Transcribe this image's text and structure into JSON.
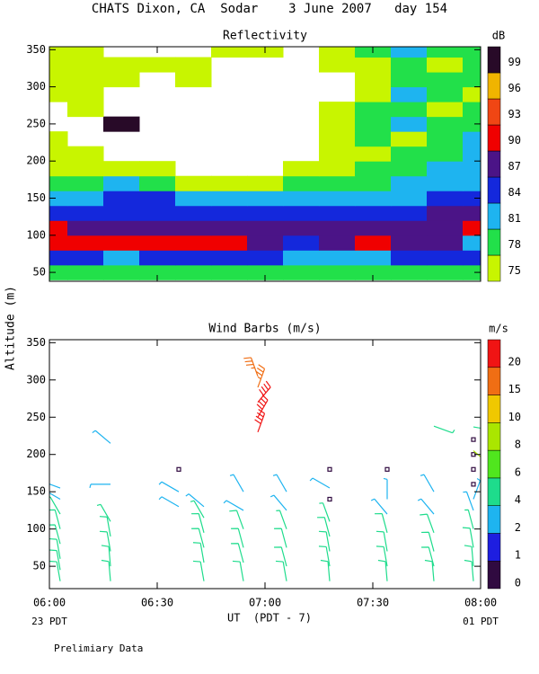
{
  "title": "CHATS Dixon, CA  Sodar    3 June 2007   day 154",
  "y_label": "Altitude (m)",
  "x_label": "UT  (PDT - 7)",
  "x_start_label": "23 PDT",
  "x_end_label": "01 PDT",
  "footnote": "Prelimiary Data",
  "chart_data": [
    {
      "type": "heatmap",
      "title": "Reflectivity",
      "x": [
        360,
        370,
        380,
        390,
        400,
        410,
        420,
        430,
        440,
        450,
        460,
        470,
        480
      ],
      "y": [
        50,
        70,
        90,
        110,
        130,
        150,
        170,
        190,
        210,
        230,
        250,
        270,
        290,
        310,
        330,
        350
      ],
      "z": [
        [
          79,
          79,
          79,
          79,
          79,
          79,
          79,
          79,
          79,
          79,
          79,
          79,
          79
        ],
        [
          85,
          85,
          82,
          85,
          85,
          85,
          85,
          82,
          82,
          82,
          85,
          85,
          85
        ],
        [
          91,
          91,
          91,
          91,
          91,
          91,
          88,
          85,
          88,
          91,
          88,
          88,
          82
        ],
        [
          91,
          88,
          88,
          88,
          88,
          88,
          88,
          88,
          88,
          88,
          88,
          88,
          91
        ],
        [
          86,
          86,
          86,
          86,
          86,
          86,
          86,
          85,
          85,
          85,
          85,
          88,
          88
        ],
        [
          82,
          82,
          86,
          85,
          82,
          82,
          82,
          82,
          82,
          82,
          82,
          85,
          85
        ],
        [
          79,
          79,
          82,
          79,
          76,
          76,
          76,
          79,
          79,
          79,
          82,
          82,
          82
        ],
        [
          76,
          76,
          76,
          76,
          null,
          null,
          null,
          76,
          76,
          79,
          79,
          82,
          82
        ],
        [
          76,
          76,
          null,
          null,
          null,
          null,
          null,
          null,
          76,
          76,
          79,
          79,
          82
        ],
        [
          76,
          null,
          null,
          null,
          null,
          null,
          null,
          null,
          76,
          79,
          76,
          79,
          82
        ],
        [
          null,
          null,
          99,
          null,
          null,
          null,
          null,
          null,
          76,
          79,
          82,
          79,
          79
        ],
        [
          null,
          76,
          null,
          null,
          null,
          null,
          null,
          null,
          76,
          79,
          79,
          76,
          79
        ],
        [
          76,
          76,
          null,
          null,
          null,
          null,
          null,
          null,
          null,
          76,
          82,
          79,
          76
        ],
        [
          76,
          76,
          76,
          null,
          76,
          null,
          null,
          null,
          null,
          76,
          79,
          79,
          79
        ],
        [
          76,
          76,
          76,
          76,
          76,
          null,
          null,
          null,
          76,
          76,
          79,
          76,
          79
        ],
        [
          76,
          76,
          null,
          null,
          null,
          76,
          76,
          null,
          76,
          79,
          82,
          79,
          79
        ]
      ],
      "xlim": [
        360,
        480
      ],
      "ylim": [
        38,
        354
      ],
      "xticks": [
        {
          "value": 360,
          "label": "06:00"
        },
        {
          "value": 390,
          "label": "06:30"
        },
        {
          "value": 420,
          "label": "07:00"
        },
        {
          "value": 450,
          "label": "07:30"
        },
        {
          "value": 480,
          "label": "08:00"
        }
      ],
      "yticks": [
        50,
        100,
        150,
        200,
        250,
        300,
        350
      ],
      "colorbar": {
        "label": "dB",
        "ticks": [
          75,
          78,
          81,
          84,
          87,
          90,
          93,
          96,
          99
        ],
        "colors": [
          "#c8f500",
          "#22e04a",
          "#1eb4f0",
          "#1428dc",
          "#4b1487",
          "#f00000",
          "#f04614",
          "#f0b400",
          "#280a28"
        ]
      }
    },
    {
      "type": "barbs",
      "title": "Wind Barbs (m/s)",
      "barbs": [
        {
          "time": 363,
          "altitude": 30,
          "speed": 5,
          "direction": 350
        },
        {
          "time": 363,
          "altitude": 45,
          "speed": 5,
          "direction": 350
        },
        {
          "time": 363,
          "altitude": 60,
          "speed": 5,
          "direction": 350
        },
        {
          "time": 363,
          "altitude": 80,
          "speed": 5,
          "direction": 345
        },
        {
          "time": 363,
          "altitude": 100,
          "speed": 5,
          "direction": 345
        },
        {
          "time": 363,
          "altitude": 120,
          "speed": 4,
          "direction": 330
        },
        {
          "time": 363,
          "altitude": 140,
          "speed": 3,
          "direction": 300
        },
        {
          "time": 363,
          "altitude": 155,
          "speed": 3,
          "direction": 290
        },
        {
          "time": 377,
          "altitude": 30,
          "speed": 5,
          "direction": 355
        },
        {
          "time": 377,
          "altitude": 50,
          "speed": 5,
          "direction": 355
        },
        {
          "time": 377,
          "altitude": 70,
          "speed": 5,
          "direction": 350
        },
        {
          "time": 377,
          "altitude": 90,
          "speed": 5,
          "direction": 350
        },
        {
          "time": 377,
          "altitude": 110,
          "speed": 4,
          "direction": 330
        },
        {
          "time": 377,
          "altitude": 160,
          "speed": 2,
          "direction": 270
        },
        {
          "time": 377,
          "altitude": 215,
          "speed": 3,
          "direction": 310
        },
        {
          "time": 396,
          "altitude": 130,
          "speed": 3,
          "direction": 300
        },
        {
          "time": 396,
          "altitude": 150,
          "speed": 3,
          "direction": 300
        },
        {
          "time": 396,
          "altitude": 180,
          "speed": 0.5,
          "direction": 0
        },
        {
          "time": 403,
          "altitude": 30,
          "speed": 5,
          "direction": 350
        },
        {
          "time": 403,
          "altitude": 55,
          "speed": 5,
          "direction": 350
        },
        {
          "time": 403,
          "altitude": 75,
          "speed": 5,
          "direction": 345
        },
        {
          "time": 403,
          "altitude": 95,
          "speed": 5,
          "direction": 345
        },
        {
          "time": 403,
          "altitude": 115,
          "speed": 4,
          "direction": 330
        },
        {
          "time": 403,
          "altitude": 130,
          "speed": 3,
          "direction": 310
        },
        {
          "time": 414,
          "altitude": 30,
          "speed": 5,
          "direction": 350
        },
        {
          "time": 414,
          "altitude": 55,
          "speed": 5,
          "direction": 345
        },
        {
          "time": 414,
          "altitude": 75,
          "speed": 5,
          "direction": 345
        },
        {
          "time": 414,
          "altitude": 100,
          "speed": 5,
          "direction": 340
        },
        {
          "time": 414,
          "altitude": 125,
          "speed": 3,
          "direction": 300
        },
        {
          "time": 414,
          "altitude": 150,
          "speed": 2,
          "direction": 330
        },
        {
          "time": 418,
          "altitude": 230,
          "speed": 21,
          "direction": 20
        },
        {
          "time": 418,
          "altitude": 250,
          "speed": 21,
          "direction": 30
        },
        {
          "time": 418,
          "altitude": 270,
          "speed": 20,
          "direction": 40
        },
        {
          "time": 418,
          "altitude": 290,
          "speed": 19,
          "direction": 20
        },
        {
          "time": 418,
          "altitude": 305,
          "speed": 18,
          "direction": 340
        },
        {
          "time": 426,
          "altitude": 30,
          "speed": 5,
          "direction": 350
        },
        {
          "time": 426,
          "altitude": 50,
          "speed": 5,
          "direction": 345
        },
        {
          "time": 426,
          "altitude": 75,
          "speed": 5,
          "direction": 345
        },
        {
          "time": 426,
          "altitude": 100,
          "speed": 4,
          "direction": 340
        },
        {
          "time": 426,
          "altitude": 125,
          "speed": 3,
          "direction": 320
        },
        {
          "time": 426,
          "altitude": 150,
          "speed": 2,
          "direction": 330
        },
        {
          "time": 438,
          "altitude": 30,
          "speed": 5,
          "direction": 355
        },
        {
          "time": 438,
          "altitude": 50,
          "speed": 5,
          "direction": 350
        },
        {
          "time": 438,
          "altitude": 70,
          "speed": 5,
          "direction": 350
        },
        {
          "time": 438,
          "altitude": 90,
          "speed": 5,
          "direction": 345
        },
        {
          "time": 438,
          "altitude": 110,
          "speed": 4,
          "direction": 340
        },
        {
          "time": 438,
          "altitude": 140,
          "speed": 0.5,
          "direction": 0
        },
        {
          "time": 438,
          "altitude": 155,
          "speed": 2,
          "direction": 300
        },
        {
          "time": 438,
          "altitude": 180,
          "speed": 0.5,
          "direction": 0
        },
        {
          "time": 454,
          "altitude": 30,
          "speed": 5,
          "direction": 355
        },
        {
          "time": 454,
          "altitude": 50,
          "speed": 5,
          "direction": 350
        },
        {
          "time": 454,
          "altitude": 70,
          "speed": 5,
          "direction": 350
        },
        {
          "time": 454,
          "altitude": 95,
          "speed": 5,
          "direction": 345
        },
        {
          "time": 454,
          "altitude": 120,
          "speed": 3,
          "direction": 320
        },
        {
          "time": 454,
          "altitude": 140,
          "speed": 2,
          "direction": 0
        },
        {
          "time": 454,
          "altitude": 180,
          "speed": 0.5,
          "direction": 0
        },
        {
          "time": 467,
          "altitude": 30,
          "speed": 5,
          "direction": 355
        },
        {
          "time": 467,
          "altitude": 50,
          "speed": 5,
          "direction": 345
        },
        {
          "time": 467,
          "altitude": 70,
          "speed": 5,
          "direction": 345
        },
        {
          "time": 467,
          "altitude": 95,
          "speed": 5,
          "direction": 340
        },
        {
          "time": 467,
          "altitude": 120,
          "speed": 3,
          "direction": 320
        },
        {
          "time": 467,
          "altitude": 150,
          "speed": 2,
          "direction": 330
        },
        {
          "time": 467,
          "altitude": 238,
          "speed": 4,
          "direction": 110
        },
        {
          "time": 478,
          "altitude": 30,
          "speed": 5,
          "direction": 355
        },
        {
          "time": 478,
          "altitude": 50,
          "speed": 5,
          "direction": 355
        },
        {
          "time": 478,
          "altitude": 75,
          "speed": 5,
          "direction": 350
        },
        {
          "time": 478,
          "altitude": 100,
          "speed": 4,
          "direction": 345
        },
        {
          "time": 478,
          "altitude": 125,
          "speed": 3,
          "direction": 340
        },
        {
          "time": 478,
          "altitude": 140,
          "speed": 2,
          "direction": 20
        },
        {
          "time": 478,
          "altitude": 160,
          "speed": 0.5,
          "direction": 0
        },
        {
          "time": 478,
          "altitude": 180,
          "speed": 0.5,
          "direction": 0
        },
        {
          "time": 478,
          "altitude": 200,
          "speed": 0.5,
          "direction": 0
        },
        {
          "time": 478,
          "altitude": 220,
          "speed": 0.5,
          "direction": 0
        },
        {
          "time": 478,
          "altitude": 237,
          "speed": 4,
          "direction": 100
        },
        {
          "time": 478,
          "altitude": 205,
          "speed": 8,
          "direction": 130
        }
      ],
      "xlim": [
        360,
        480
      ],
      "ylim": [
        20,
        354
      ],
      "xticks": [
        {
          "value": 360,
          "label": "06:00"
        },
        {
          "value": 390,
          "label": "06:30"
        },
        {
          "value": 420,
          "label": "07:00"
        },
        {
          "value": 450,
          "label": "07:30"
        },
        {
          "value": 480,
          "label": "08:00"
        }
      ],
      "yticks": [
        50,
        100,
        150,
        200,
        250,
        300,
        350
      ],
      "colorbar": {
        "label": "m/s",
        "ticks": [
          0,
          1,
          2,
          4,
          6,
          8,
          10,
          15,
          20
        ],
        "colors": [
          "#300a40",
          "#1e1ee0",
          "#1eb4f0",
          "#1edc8c",
          "#50e61e",
          "#aae600",
          "#f0c800",
          "#f06e14",
          "#f01414"
        ]
      }
    }
  ]
}
